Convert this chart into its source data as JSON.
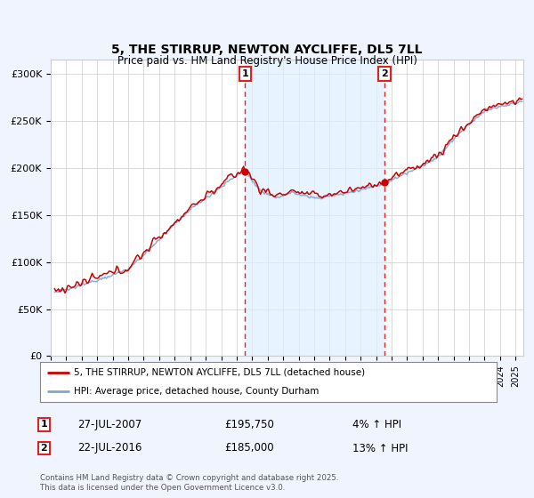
{
  "title_line1": "5, THE STIRRUP, NEWTON AYCLIFFE, DL5 7LL",
  "title_line2": "Price paid vs. HM Land Registry's House Price Index (HPI)",
  "ylabel_ticks": [
    "£0",
    "£50K",
    "£100K",
    "£150K",
    "£200K",
    "£250K",
    "£300K"
  ],
  "ytick_values": [
    0,
    50000,
    100000,
    150000,
    200000,
    250000,
    300000
  ],
  "ylim": [
    0,
    315000
  ],
  "xlim_start": 1995.3,
  "xlim_end": 2025.5,
  "vline1_x": 2007.55,
  "vline2_x": 2016.55,
  "sale1_label": "1",
  "sale2_label": "2",
  "sale1_info": "27-JUL-2007",
  "sale1_price": "£195,750",
  "sale1_hpi": "4% ↑ HPI",
  "sale2_info": "22-JUL-2016",
  "sale2_price": "£185,000",
  "sale2_hpi": "13% ↑ HPI",
  "legend_line1": "5, THE STIRRUP, NEWTON AYCLIFFE, DL5 7LL (detached house)",
  "legend_line2": "HPI: Average price, detached house, County Durham",
  "footer": "Contains HM Land Registry data © Crown copyright and database right 2025.\nThis data is licensed under the Open Government Licence v3.0.",
  "bg_color": "#f0f4ff",
  "plot_bg_color": "#ffffff",
  "red_color": "#cc0000",
  "blue_color": "#7aa8d0",
  "vline_color": "#dd2222",
  "grid_color": "#cccccc",
  "shade_color": "#ddeeff",
  "sale1_y": 195750,
  "sale2_y": 185000
}
